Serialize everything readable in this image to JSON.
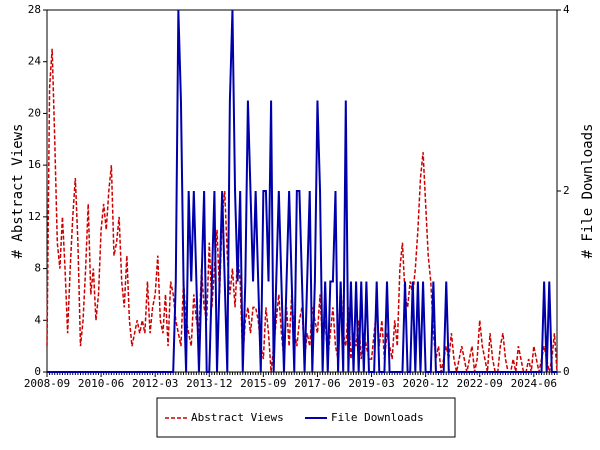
{
  "chart_data": {
    "type": "line",
    "y_label": "# Abstract Views",
    "y2_label": "# File Downloads",
    "categories": [
      "2008-09",
      null,
      null,
      null,
      null,
      null,
      null,
      null,
      null,
      null,
      null,
      null,
      null,
      null,
      null,
      null,
      null,
      null,
      null,
      null,
      null,
      "2010-06",
      null,
      null,
      null,
      null,
      null,
      null,
      null,
      null,
      null,
      null,
      null,
      null,
      null,
      null,
      null,
      null,
      null,
      null,
      null,
      null,
      "2012-03",
      null,
      null,
      null,
      null,
      null,
      null,
      null,
      null,
      null,
      null,
      null,
      null,
      null,
      null,
      null,
      null,
      null,
      null,
      null,
      null,
      "2013-12",
      null,
      null,
      null,
      null,
      null,
      null,
      null,
      null,
      null,
      null,
      null,
      null,
      null,
      null,
      null,
      null,
      null,
      null,
      null,
      null,
      "2015-09",
      null,
      null,
      null,
      null,
      null,
      null,
      null,
      null,
      null,
      null,
      null,
      null,
      null,
      null,
      null,
      null,
      null,
      null,
      null,
      null,
      "2017-06",
      null,
      null,
      null,
      null,
      null,
      null,
      null,
      null,
      null,
      null,
      null,
      null,
      null,
      null,
      null,
      null,
      null,
      null,
      null,
      null,
      "2019-03",
      null,
      null,
      null,
      null,
      null,
      null,
      null,
      null,
      null,
      null,
      null,
      null,
      null,
      null,
      null,
      null,
      null,
      null,
      null,
      null,
      "2020-12",
      null,
      null,
      null,
      null,
      null,
      null,
      null,
      null,
      null,
      null,
      null,
      null,
      null,
      null,
      null,
      null,
      null,
      null,
      null,
      null,
      "2022-09",
      null,
      null,
      null,
      null,
      null,
      null,
      null,
      null,
      null,
      null,
      null,
      null,
      null,
      null,
      null,
      null,
      null,
      null,
      null,
      null,
      "2024-06",
      null,
      null,
      null,
      null,
      null,
      null,
      null,
      null,
      null
    ],
    "series": [
      {
        "name": "Abstract Views",
        "color": "#cc0000",
        "dash": true,
        "values": [
          2,
          22,
          25,
          18,
          10,
          8,
          12,
          8,
          3,
          8,
          12,
          15,
          10,
          2,
          4,
          8,
          13,
          6,
          8,
          4,
          6,
          11,
          13,
          11,
          14,
          16,
          9,
          10,
          12,
          7,
          5,
          9,
          4,
          2,
          3,
          4,
          3,
          4,
          3,
          7,
          3,
          5,
          6,
          9,
          4,
          3,
          6,
          2,
          7,
          6,
          4,
          3,
          2,
          7,
          4,
          3,
          2,
          6,
          4,
          3,
          8,
          5,
          4,
          10,
          5,
          8,
          11,
          6,
          12,
          14,
          9,
          6,
          8,
          5,
          9,
          7,
          1,
          4,
          5,
          3,
          5,
          5,
          4,
          2,
          1,
          5,
          3,
          0,
          2,
          4,
          6,
          3,
          1,
          5,
          2,
          6,
          3,
          2,
          4,
          5,
          1,
          3,
          2,
          5,
          4,
          3,
          6,
          2,
          4,
          1,
          3,
          5,
          2,
          1,
          7,
          3,
          2,
          5,
          1,
          3,
          2,
          4,
          1,
          3,
          2,
          1,
          1,
          3,
          5,
          2,
          4,
          1,
          3,
          2,
          1,
          4,
          2,
          8,
          10,
          6,
          5,
          7,
          6,
          8,
          11,
          15,
          17,
          13,
          9,
          7,
          3,
          1,
          2,
          0,
          1,
          2,
          1,
          3,
          1,
          0,
          1,
          2,
          1,
          0,
          1,
          2,
          0,
          1,
          4,
          2,
          1,
          0,
          3,
          1,
          0,
          0,
          2,
          3,
          1,
          0,
          0,
          1,
          0,
          2,
          1,
          0,
          0,
          1,
          0,
          2,
          1,
          0,
          1,
          2,
          1,
          0,
          1,
          3,
          0
        ]
      },
      {
        "name": "File Downloads",
        "color": "#0000aa",
        "axis": "y2",
        "values": [
          0,
          0,
          0,
          0,
          0,
          0,
          0,
          0,
          0,
          0,
          0,
          0,
          0,
          0,
          0,
          0,
          0,
          0,
          0,
          0,
          0,
          0,
          0,
          0,
          0,
          0,
          0,
          0,
          0,
          0,
          0,
          0,
          0,
          0,
          0,
          0,
          0,
          0,
          0,
          0,
          0,
          0,
          0,
          0,
          0,
          0,
          0,
          0,
          0,
          0,
          1,
          4,
          3,
          1,
          0,
          2,
          1,
          2,
          1,
          0,
          1,
          2,
          0,
          0,
          1,
          2,
          0,
          1,
          2,
          1,
          0,
          3,
          4,
          2,
          1,
          2,
          0,
          1,
          3,
          2,
          1,
          2,
          1,
          0,
          2,
          2,
          1,
          3,
          0,
          1,
          2,
          1,
          0,
          1,
          2,
          1,
          0,
          2,
          2,
          1,
          0,
          1,
          2,
          0,
          1,
          3,
          2,
          0,
          1,
          0,
          1,
          1,
          2,
          0,
          1,
          0,
          3,
          0,
          1,
          0,
          1,
          0,
          1,
          0,
          1,
          0,
          0,
          0,
          1,
          0,
          0,
          0,
          1,
          0,
          0,
          0,
          0,
          0,
          0,
          1,
          0,
          0,
          1,
          0,
          1,
          0,
          1,
          0,
          0,
          0,
          1,
          0,
          0,
          0,
          0,
          1,
          0,
          0,
          0,
          0,
          0,
          0,
          0,
          0,
          0,
          0,
          0,
          0,
          0,
          0,
          0,
          0,
          0,
          0,
          0,
          0,
          0,
          0,
          0,
          0,
          0,
          0,
          0,
          0,
          0,
          0,
          0,
          0,
          0,
          0,
          0,
          0,
          0,
          1,
          0,
          1,
          0,
          0,
          0
        ]
      }
    ],
    "ylim": [
      0,
      28
    ],
    "yticks": [
      0,
      4,
      8,
      12,
      16,
      20,
      24,
      28
    ],
    "y2lim": [
      0,
      4
    ],
    "y2ticks": [
      0,
      2,
      4
    ],
    "legend": "bottom"
  }
}
